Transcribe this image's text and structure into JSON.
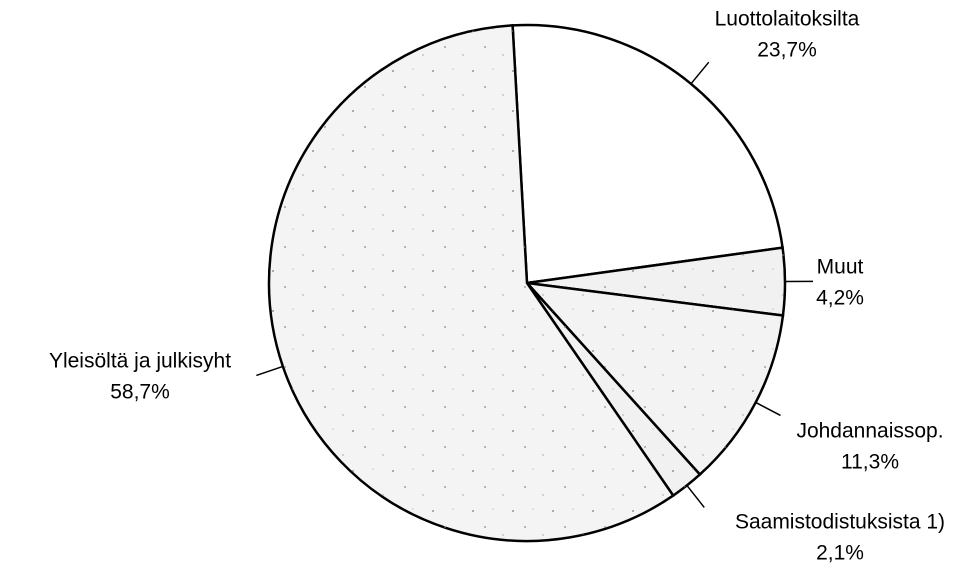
{
  "chart_data": {
    "type": "pie",
    "categories": [
      "Luottolaitoksilta",
      "Muut",
      "Johdannaissop.",
      "Saamistodistuksista 1)",
      "Yleisöltä ja julkisyht"
    ],
    "values": [
      23.7,
      4.2,
      11.3,
      2.1,
      58.7
    ],
    "value_labels": [
      "23,7%",
      "4,2%",
      "11,3%",
      "2,1%",
      "58,7%"
    ],
    "colors": [
      "#ffffff",
      "#f1f1f1",
      "#f3f3f3",
      "#f1f1f1",
      "#f4f4f4"
    ]
  }
}
